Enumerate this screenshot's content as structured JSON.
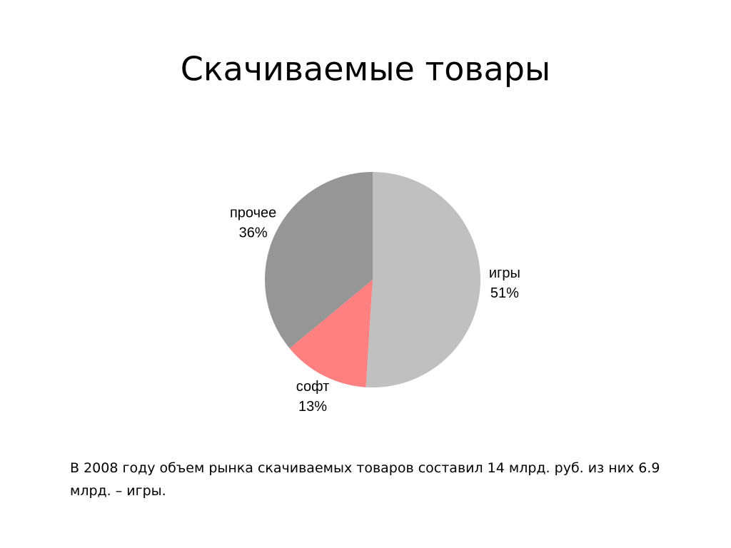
{
  "chart_data": {
    "type": "pie",
    "title": "Скачиваемые товары",
    "categories": [
      "игры",
      "софт",
      "прочее"
    ],
    "values": [
      51,
      13,
      36
    ],
    "value_labels": [
      "51%",
      "13%",
      "36%"
    ],
    "colors": [
      "#c0c0c0",
      "#ff8080",
      "#969696"
    ]
  },
  "caption": "В 2008 году объем рынка скачиваемых товаров составил 14 млрд. руб. из них 6.9 млрд. – игры."
}
